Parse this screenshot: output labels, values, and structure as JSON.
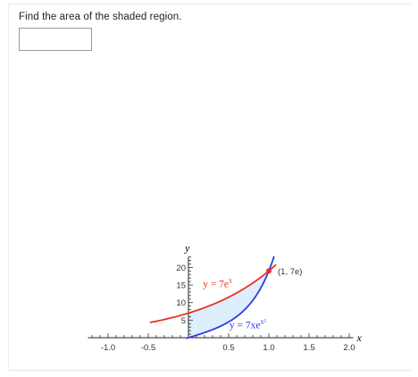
{
  "question": {
    "text": "Find the area of the shaded region."
  },
  "answer": {
    "value": "",
    "placeholder": ""
  },
  "chart_data": {
    "type": "area",
    "xlabel": "x",
    "ylabel": "y",
    "xlim": [
      -1.25,
      2.05
    ],
    "ylim": [
      -0.3,
      23
    ],
    "x_ticks": [
      {
        "value": -1.0,
        "label": "-1.0"
      },
      {
        "value": -0.5,
        "label": "-0.5"
      },
      {
        "value": 0.5,
        "label": "0.5"
      },
      {
        "value": 1.0,
        "label": "1.0"
      },
      {
        "value": 1.5,
        "label": "1.5"
      },
      {
        "value": 2.0,
        "label": "2.0"
      }
    ],
    "y_ticks": [
      {
        "value": 5,
        "label": "5"
      },
      {
        "value": 10,
        "label": "10"
      },
      {
        "value": 15,
        "label": "15"
      },
      {
        "value": 20,
        "label": "20"
      }
    ],
    "curves": [
      {
        "label": "y = 7e^x",
        "label_main": "y = 7e",
        "label_sup": "x",
        "color": "#e8322a",
        "x_range": [
          -0.48,
          1.09
        ]
      },
      {
        "label": "y = 7xe^(x^2)",
        "label_main": "y = 7xe",
        "label_sup": "x²",
        "color": "#2a3de8",
        "x_range": [
          -0.03,
          1.065
        ]
      }
    ],
    "shaded_region": {
      "x_from": 0,
      "x_to": 1,
      "upper": "y = 7e^x",
      "lower": "y = 7xe^(x^2)",
      "fill": "#ddeefc"
    },
    "intersection": {
      "x": 1,
      "y": 19.03,
      "label": "(1, 7e)",
      "color": "#e8322a"
    }
  }
}
